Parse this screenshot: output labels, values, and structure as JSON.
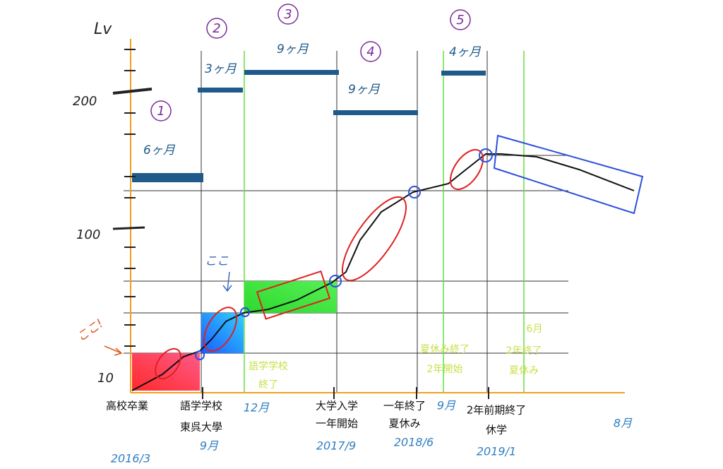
{
  "y_axis": {
    "title": "Lv",
    "labels": [
      "200",
      "100",
      "10"
    ]
  },
  "phases": [
    {
      "number": "1",
      "duration": "6ヶ月"
    },
    {
      "number": "2",
      "duration": "3ヶ月"
    },
    {
      "number": "3",
      "duration": "9ヶ月"
    },
    {
      "number": "4",
      "duration": "9ヶ月"
    },
    {
      "number": "5",
      "duration": "4ヶ月"
    }
  ],
  "annotations": {
    "here_blue": "ここ",
    "here_red": "ここ!"
  },
  "milestones": [
    [
      "高校卒業"
    ],
    [
      "語学学校",
      "東呉大學"
    ],
    [
      "大学入学",
      "一年開始"
    ],
    [
      "一年終了",
      "夏休み"
    ],
    [
      "2年前期終了",
      "休学"
    ]
  ],
  "green_notes": [
    [
      "語学学校",
      "終了"
    ],
    [
      "夏休み終了",
      "2年開始"
    ],
    [
      "2年終了",
      "夏休み"
    ],
    [
      "6月"
    ]
  ],
  "dates": [
    "2016/3",
    "9月",
    "12月",
    "2017/9",
    "2018/6",
    "9月",
    "2019/1",
    "8月"
  ]
}
